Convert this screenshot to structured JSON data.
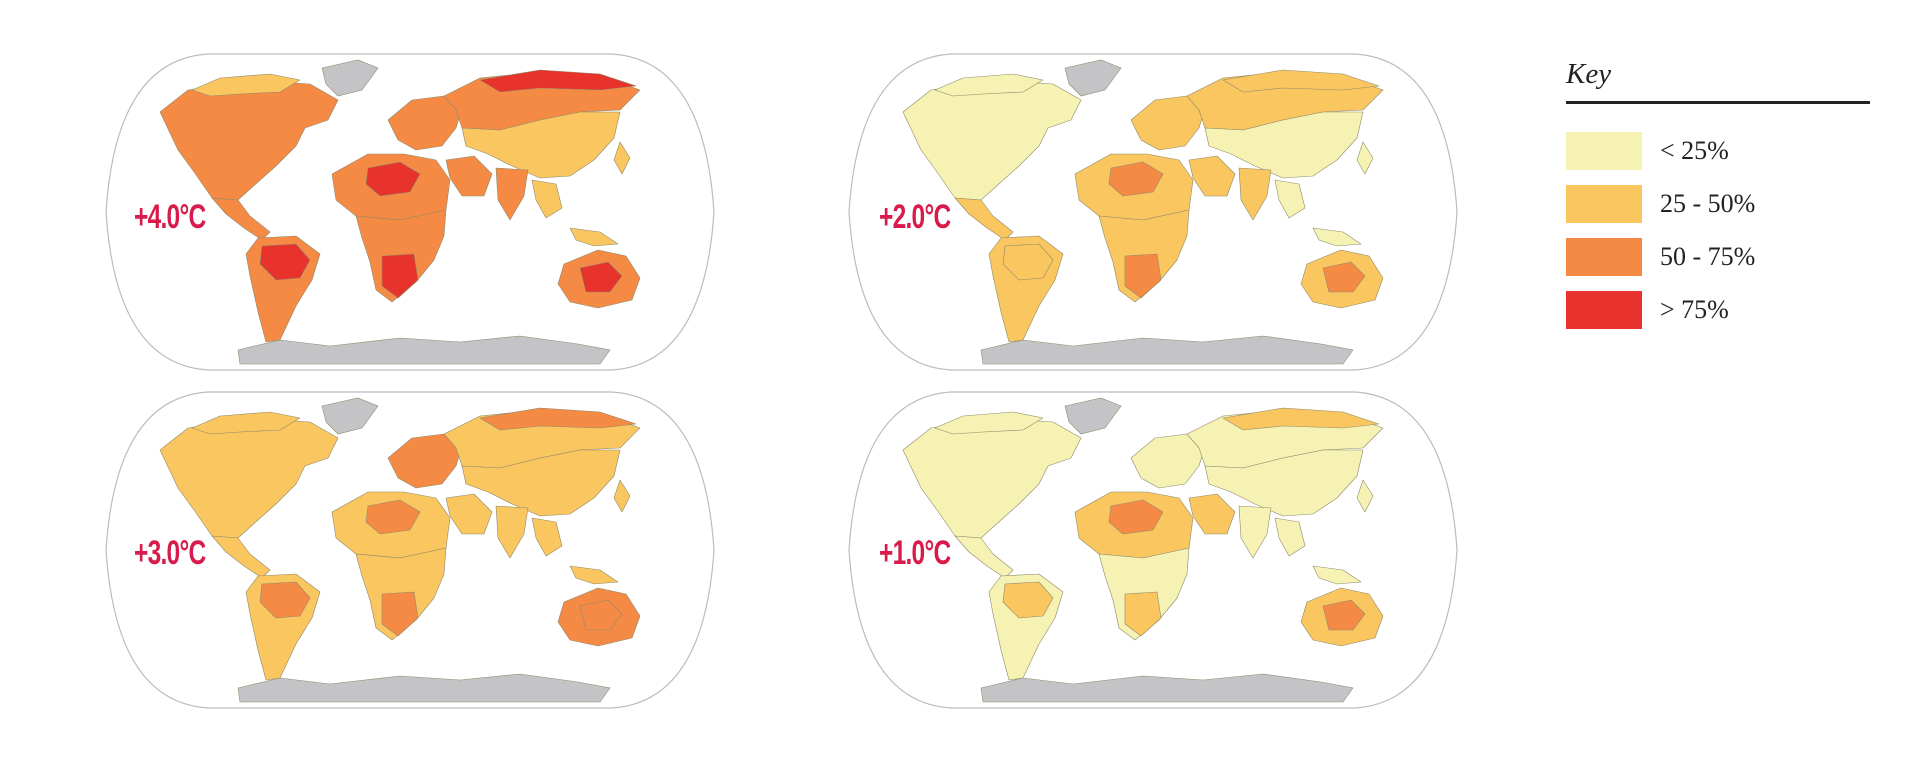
{
  "colors": {
    "label": "#d81b4a",
    "ocean": "#ffffff",
    "outline": "#bcbcbc",
    "antarctica": "#c4c4c6",
    "greenland": "#c4c4c6",
    "land_border": "#8f8a6c"
  },
  "maps": [
    {
      "id": "plus-4",
      "label": "+4.0°C",
      "levels": {
        "north_america": "50-75",
        "mesoamerica": "50-75",
        "south_america": "50-75",
        "amazon": ">75",
        "europe": "50-75",
        "siberia": "50-75",
        "siberia_north": ">75",
        "asia": "25-50",
        "north_africa": "50-75",
        "sahara_core": ">75",
        "middle_east": "50-75",
        "africa": "50-75",
        "southern_africa": ">75",
        "india": "50-75",
        "se_asia": "25-50",
        "australia": "50-75",
        "australia_core": ">75",
        "canada_arctic": "25-50"
      }
    },
    {
      "id": "plus-2",
      "label": "+2.0°C",
      "levels": {
        "north_america": "<25",
        "mesoamerica": "25-50",
        "south_america": "25-50",
        "amazon": "25-50",
        "europe": "25-50",
        "siberia": "25-50",
        "siberia_north": "25-50",
        "asia": "<25",
        "north_africa": "25-50",
        "sahara_core": "50-75",
        "middle_east": "25-50",
        "africa": "25-50",
        "southern_africa": "50-75",
        "india": "25-50",
        "se_asia": "<25",
        "australia": "25-50",
        "australia_core": "50-75",
        "canada_arctic": "<25"
      }
    },
    {
      "id": "plus-3",
      "label": "+3.0°C",
      "levels": {
        "north_america": "25-50",
        "mesoamerica": "25-50",
        "south_america": "25-50",
        "amazon": "50-75",
        "europe": "50-75",
        "siberia": "25-50",
        "siberia_north": "50-75",
        "asia": "25-50",
        "north_africa": "25-50",
        "sahara_core": "50-75",
        "middle_east": "25-50",
        "africa": "25-50",
        "southern_africa": "50-75",
        "india": "25-50",
        "se_asia": "25-50",
        "australia": "50-75",
        "australia_core": "50-75",
        "canada_arctic": "25-50"
      }
    },
    {
      "id": "plus-1",
      "label": "+1.0°C",
      "levels": {
        "north_america": "<25",
        "mesoamerica": "<25",
        "south_america": "<25",
        "amazon": "25-50",
        "europe": "<25",
        "siberia": "<25",
        "siberia_north": "25-50",
        "asia": "<25",
        "north_africa": "25-50",
        "sahara_core": "50-75",
        "middle_east": "25-50",
        "africa": "<25",
        "southern_africa": "25-50",
        "india": "<25",
        "se_asia": "<25",
        "australia": "25-50",
        "australia_core": "50-75",
        "canada_arctic": "<25"
      }
    }
  ],
  "key": {
    "title": "Key",
    "items": [
      {
        "id": "<25",
        "label": "< 25%",
        "color": "#f6f2b3"
      },
      {
        "id": "25-50",
        "label": "25 - 50%",
        "color": "#fac65f"
      },
      {
        "id": "50-75",
        "label": "50 - 75%",
        "color": "#f58a45"
      },
      {
        "id": ">75",
        "label": "> 75%",
        "color": "#e8322c"
      }
    ]
  }
}
